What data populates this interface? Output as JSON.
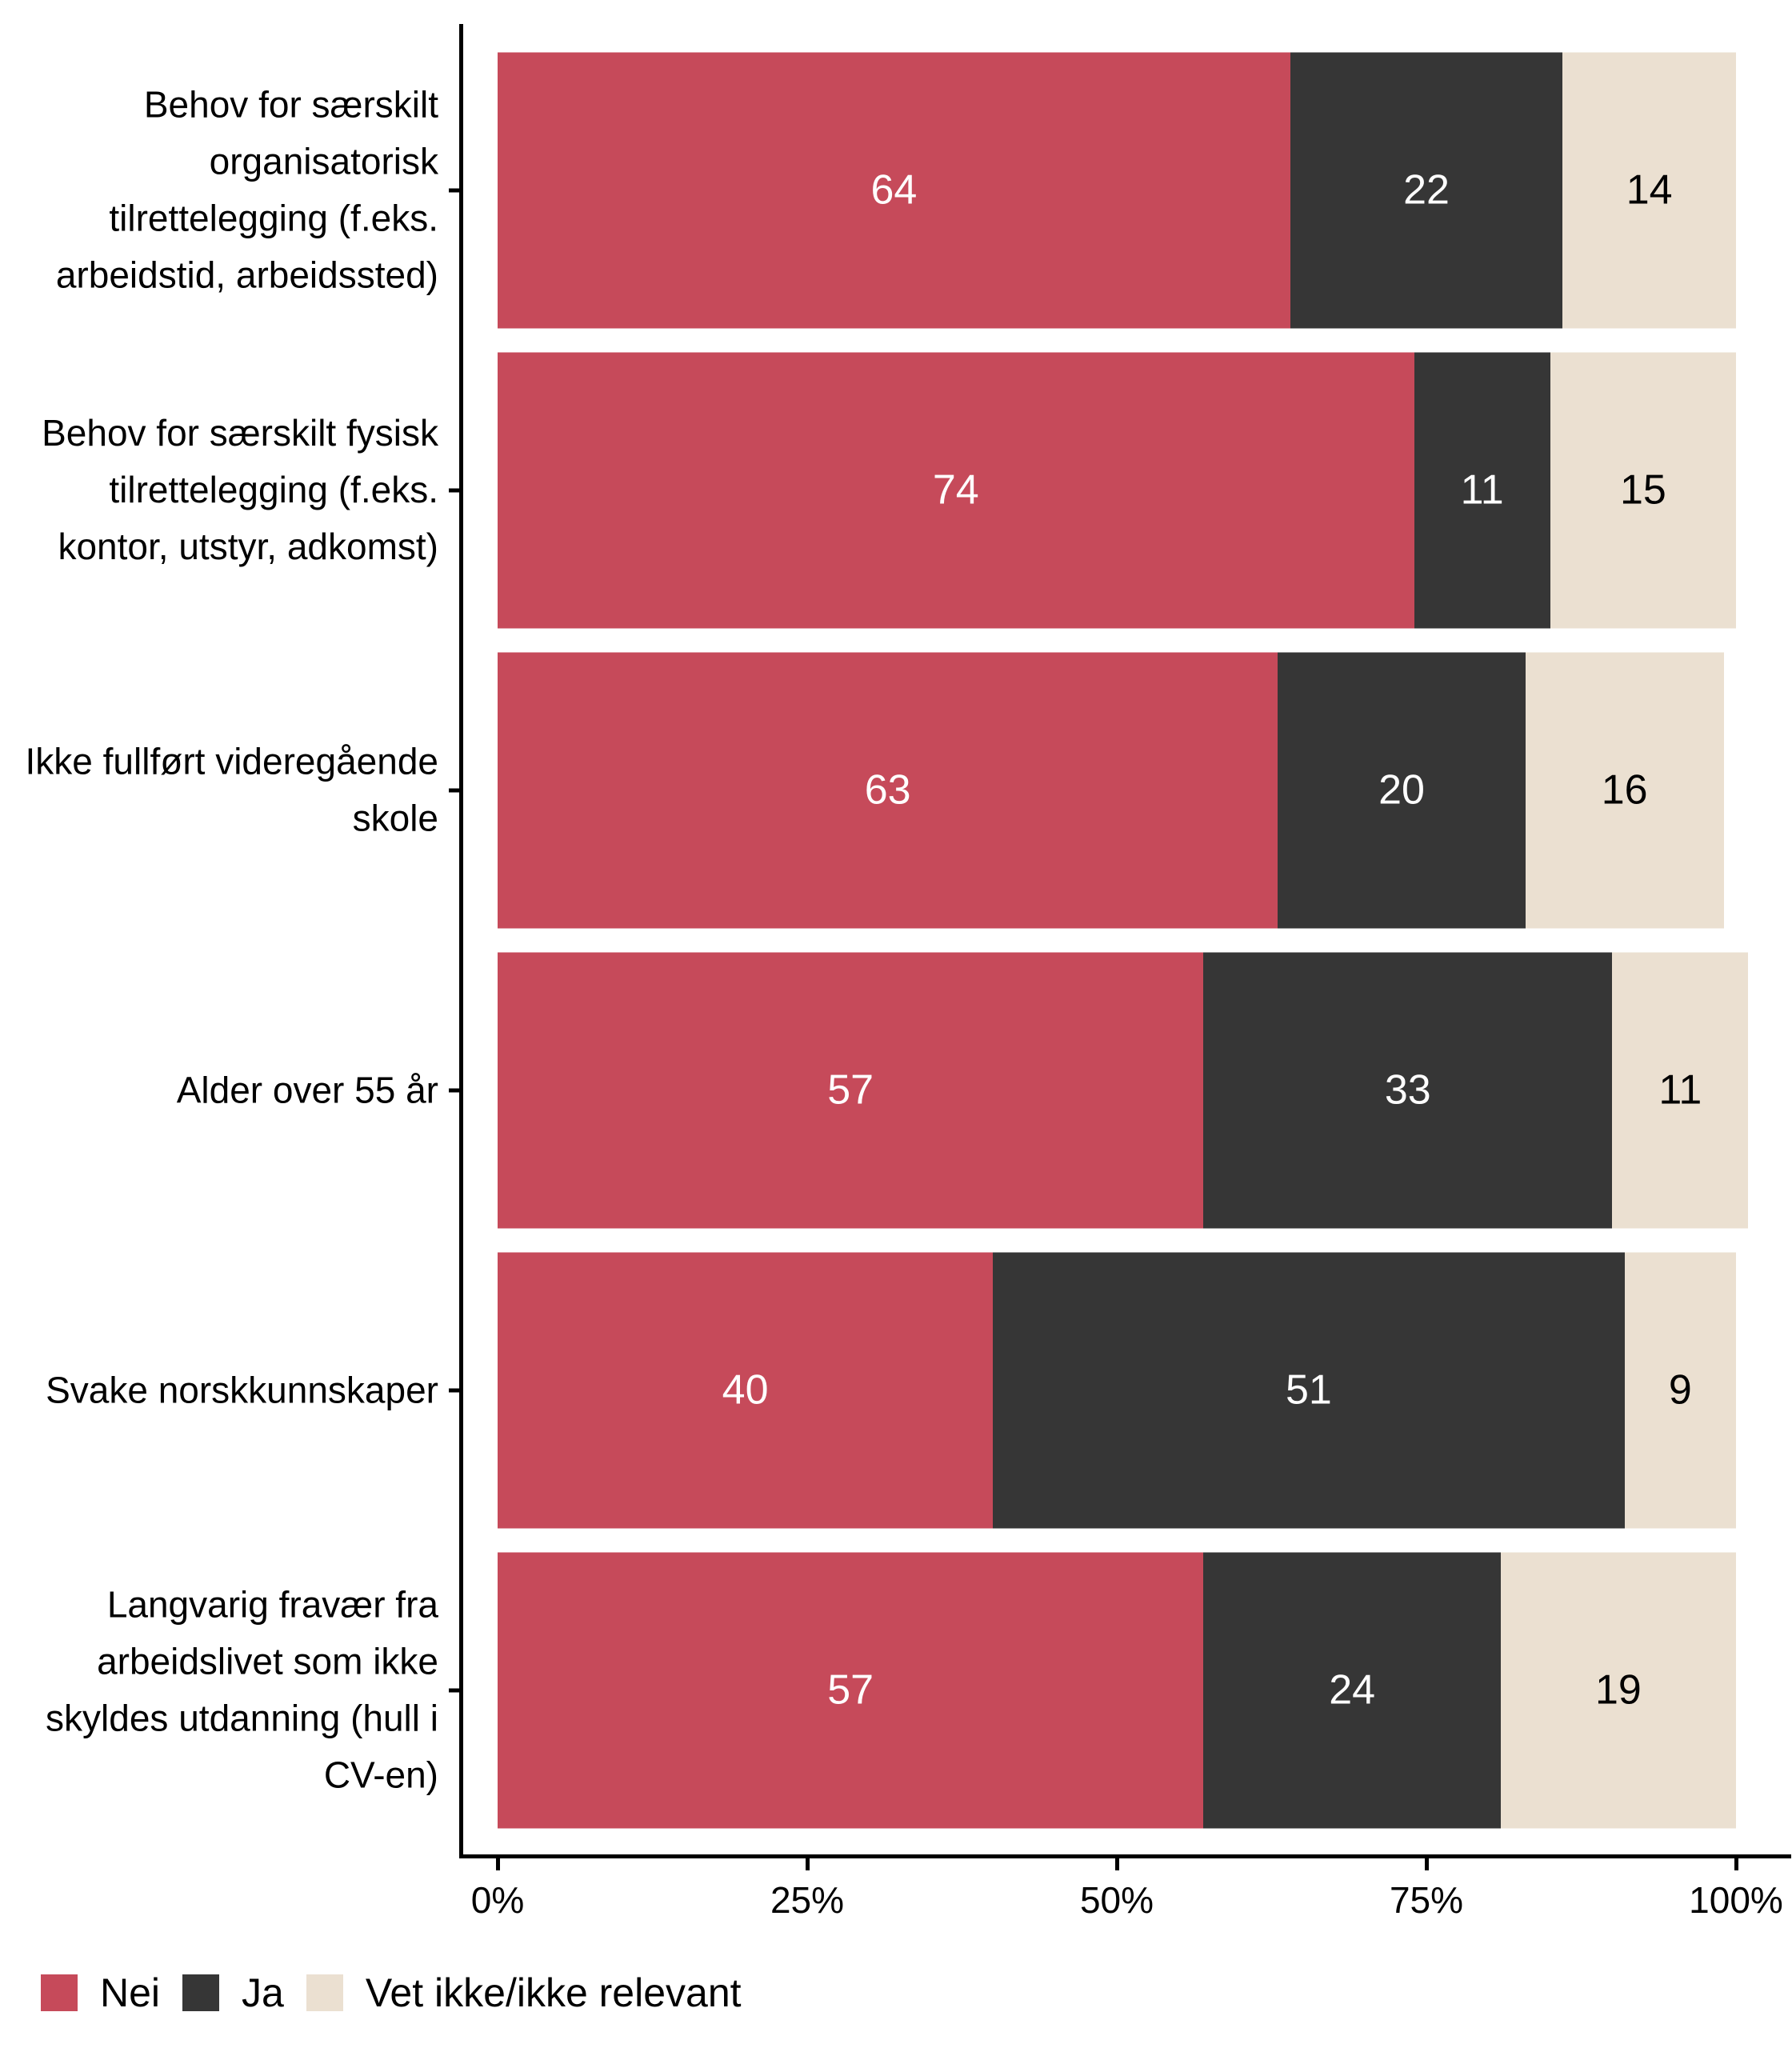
{
  "chart_data": {
    "type": "bar",
    "orientation": "horizontal",
    "stacked": true,
    "title": "",
    "xlabel": "",
    "ylabel": "",
    "categories": [
      "Behov for særskilt organisatorisk tilrettelegging (f.eks. arbeidstid, arbeidssted)",
      "Behov for særskilt fysisk tilrettelegging (f.eks. kontor, utstyr, adkomst)",
      "Ikke fullført videregående skole",
      "Alder over 55 år",
      "Svake norskkunnskaper",
      "Langvarig fravær fra arbeidslivet som ikke skyldes utdanning (hull i CV-en)"
    ],
    "series": [
      {
        "name": "Nei",
        "color": "#C64A5A",
        "label_color": "#FFFFFF",
        "values": [
          64,
          74,
          63,
          57,
          40,
          57
        ]
      },
      {
        "name": "Ja",
        "color": "#363636",
        "label_color": "#FFFFFF",
        "values": [
          22,
          11,
          20,
          33,
          51,
          24
        ]
      },
      {
        "name": "Vet ikke/ikke relevant",
        "color": "#EBE0D1",
        "label_color": "#000000",
        "values": [
          14,
          15,
          16,
          11,
          9,
          19
        ]
      }
    ],
    "x_axis": {
      "tick_labels": [
        "0%",
        "25%",
        "50%",
        "75%",
        "100%"
      ],
      "range": [
        0,
        100
      ]
    },
    "grid": false,
    "legend_position": "bottom-left"
  }
}
